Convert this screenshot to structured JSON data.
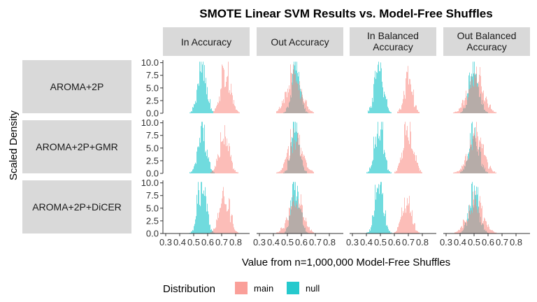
{
  "chart_data": {
    "type": "bar",
    "title": "SMOTE Linear SVM Results vs. Model-Free Shuffles",
    "xlabel": "Value from n=1,000,000 Model-Free Shuffles",
    "ylabel": "Scaled Density",
    "x_ticks": [
      "0.3",
      "0.4",
      "0.5",
      "0.6",
      "0.7",
      "0.8"
    ],
    "y_ticks": [
      "0.0",
      "2.5",
      "5.0",
      "7.5",
      "10.0"
    ],
    "xlim": [
      0.28,
      0.9
    ],
    "ylim": [
      0,
      10.5
    ],
    "columns": [
      "In Accuracy",
      "Out Accuracy",
      "In Balanced\nAccuracy",
      "Out Balanced\nAccuracy"
    ],
    "rows": [
      "AROMA+2P",
      "AROMA+2P+GMR",
      "AROMA+2P+DiCER"
    ],
    "legend": {
      "title": "Distribution",
      "items": [
        {
          "label": "main",
          "color": "#F8766D"
        },
        {
          "label": "null",
          "color": "#00BFC4"
        }
      ],
      "position": "bottom"
    },
    "series_summary": {
      "In Accuracy": {
        "null": {
          "center": 0.56,
          "spread": 0.03,
          "peak": 10
        },
        "main": [
          {
            "center": 0.73,
            "spread": 0.035,
            "peak": 8
          },
          {
            "center": 0.72,
            "spread": 0.035,
            "peak": 7.5
          },
          {
            "center": 0.72,
            "spread": 0.035,
            "peak": 8.5
          }
        ]
      },
      "Out Accuracy": {
        "null": {
          "center": 0.56,
          "spread": 0.03,
          "peak": 10
        },
        "main": [
          {
            "center": 0.55,
            "spread": 0.05,
            "peak": 8
          },
          {
            "center": 0.56,
            "spread": 0.05,
            "peak": 7
          },
          {
            "center": 0.56,
            "spread": 0.05,
            "peak": 7
          }
        ]
      },
      "In Balanced\nAccuracy": {
        "null": {
          "center": 0.49,
          "spread": 0.03,
          "peak": 10
        },
        "main": [
          {
            "center": 0.7,
            "spread": 0.03,
            "peak": 6.5
          },
          {
            "center": 0.7,
            "spread": 0.035,
            "peak": 10
          },
          {
            "center": 0.69,
            "spread": 0.035,
            "peak": 6
          }
        ]
      },
      "Out Balanced\nAccuracy": {
        "null": {
          "center": 0.5,
          "spread": 0.035,
          "peak": 8.5
        },
        "main": [
          {
            "center": 0.51,
            "spread": 0.055,
            "peak": 7.5
          },
          {
            "center": 0.51,
            "spread": 0.055,
            "peak": 7
          },
          {
            "center": 0.51,
            "spread": 0.055,
            "peak": 6
          }
        ]
      }
    }
  }
}
